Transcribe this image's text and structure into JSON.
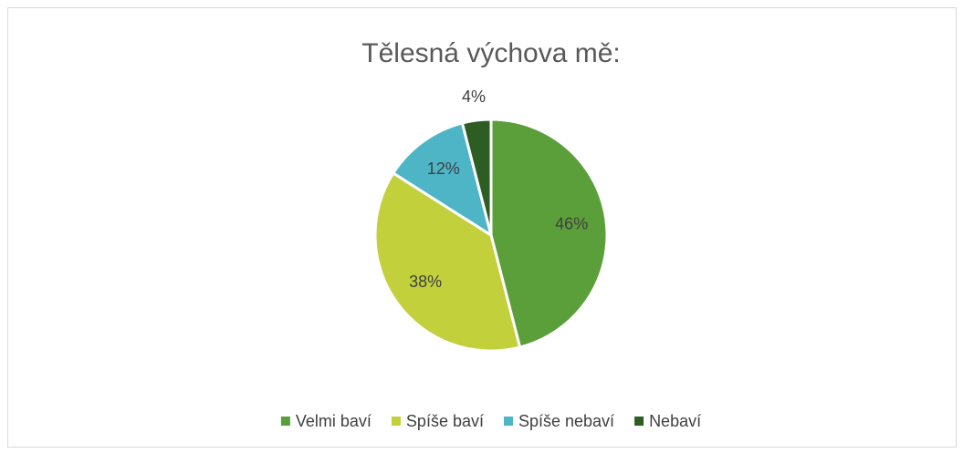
{
  "chart_data": {
    "type": "pie",
    "title": "Tělesná výchova mě:",
    "categories": [
      "Velmi baví",
      "Spíše baví",
      "Spíše nebaví",
      "Nebaví"
    ],
    "values": [
      46,
      38,
      12,
      4
    ],
    "value_labels": [
      "46%",
      "38%",
      "12%",
      "4%"
    ],
    "colors": [
      "#5b9f3a",
      "#c2d03b",
      "#4db5c6",
      "#2d5d22"
    ],
    "legend": "bottom"
  }
}
